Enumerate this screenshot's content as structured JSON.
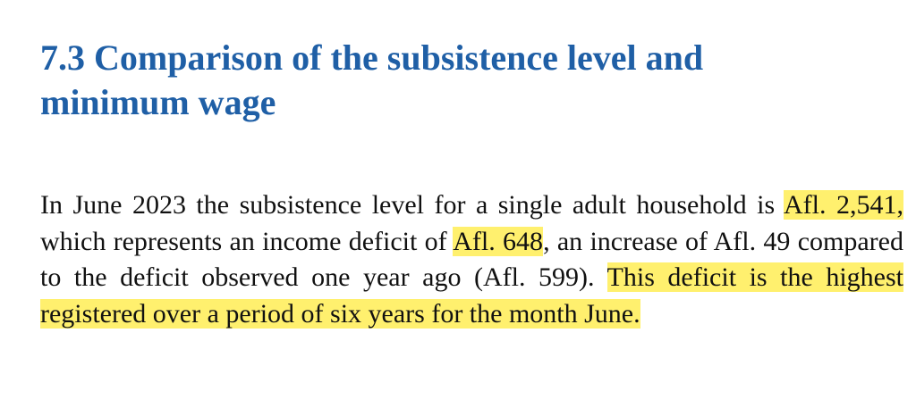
{
  "section": {
    "number": "7.3",
    "title_line1": "Comparison of the subsistence level and",
    "title_line2": "minimum wage"
  },
  "paragraph": {
    "t1": "In June 2023 the subsistence level for a single adult household is ",
    "h1": "Afl. 2,541,",
    "t2": " which represents an income deficit of ",
    "h2": "Afl. 648",
    "t3": ", an increase of Afl. 49 compared to the deficit observed one year ago (Afl. 599). ",
    "h3": "This deficit is the highest registered over a period of six years for the month June."
  },
  "colors": {
    "heading": "#1f5fa6",
    "highlight": "#fff06e",
    "text": "#111111"
  }
}
